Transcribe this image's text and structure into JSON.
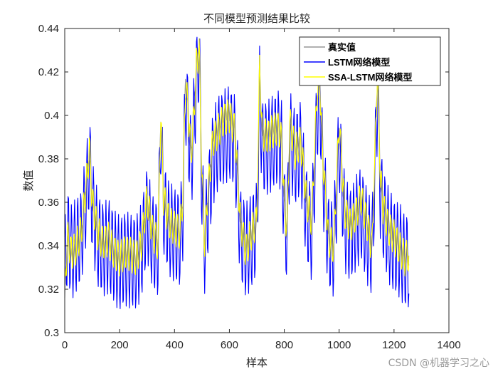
{
  "chart_data": {
    "type": "line",
    "title": "不同模型预测结果比较",
    "xlabel": "样本",
    "ylabel": "数值",
    "xlim": [
      0,
      1400
    ],
    "ylim": [
      0.3,
      0.44
    ],
    "xticks": [
      "0",
      "200",
      "400",
      "600",
      "800",
      "1000",
      "1200",
      "1400"
    ],
    "yticks": [
      "0.3",
      "0.32",
      "0.34",
      "0.36",
      "0.38",
      "0.4",
      "0.42",
      "0.44"
    ],
    "grid": false,
    "legend_position": "top-right",
    "series": [
      {
        "name": "真实值",
        "color": "#969696",
        "x": [
          0,
          10,
          25,
          40,
          60,
          80,
          90,
          100,
          120,
          140,
          160,
          180,
          200,
          220,
          240,
          260,
          280,
          300,
          320,
          340,
          350,
          360,
          380,
          400,
          420,
          430,
          440,
          450,
          460,
          470,
          480,
          490,
          500,
          510,
          520,
          540,
          560,
          580,
          600,
          610,
          620,
          640,
          660,
          680,
          700,
          710,
          720,
          740,
          760,
          780,
          790,
          800,
          810,
          820,
          840,
          860,
          880,
          900,
          920,
          930,
          940,
          960,
          980,
          1000,
          1020,
          1040,
          1060,
          1080,
          1100,
          1120,
          1140,
          1150,
          1160,
          1180,
          1200,
          1220,
          1240,
          1255
        ],
        "values": [
          0.316,
          0.343,
          0.335,
          0.338,
          0.345,
          0.372,
          0.382,
          0.36,
          0.345,
          0.34,
          0.342,
          0.336,
          0.333,
          0.336,
          0.335,
          0.333,
          0.34,
          0.36,
          0.345,
          0.34,
          0.4,
          0.36,
          0.35,
          0.347,
          0.345,
          0.36,
          0.417,
          0.4,
          0.38,
          0.4,
          0.425,
          0.433,
          0.37,
          0.34,
          0.36,
          0.39,
          0.395,
          0.4,
          0.402,
          0.398,
          0.395,
          0.35,
          0.34,
          0.345,
          0.35,
          0.42,
          0.39,
          0.392,
          0.395,
          0.395,
          0.39,
          0.36,
          0.345,
          0.395,
          0.385,
          0.39,
          0.36,
          0.35,
          0.41,
          0.415,
          0.38,
          0.345,
          0.34,
          0.395,
          0.355,
          0.35,
          0.355,
          0.36,
          0.35,
          0.34,
          0.42,
          0.37,
          0.36,
          0.35,
          0.345,
          0.34,
          0.335,
          0.335
        ]
      },
      {
        "name": "LSTM网络模型",
        "color": "#0000ff",
        "x": [
          0,
          10,
          25,
          40,
          60,
          80,
          90,
          100,
          120,
          140,
          160,
          180,
          200,
          220,
          240,
          260,
          280,
          300,
          320,
          340,
          350,
          360,
          380,
          400,
          420,
          430,
          440,
          450,
          460,
          470,
          480,
          490,
          500,
          510,
          520,
          540,
          560,
          580,
          600,
          610,
          620,
          640,
          660,
          680,
          700,
          710,
          720,
          740,
          760,
          780,
          790,
          800,
          810,
          820,
          840,
          860,
          880,
          900,
          920,
          930,
          940,
          960,
          980,
          1000,
          1020,
          1040,
          1060,
          1080,
          1100,
          1120,
          1140,
          1150,
          1160,
          1180,
          1200,
          1220,
          1240,
          1255
        ],
        "values": [
          0.33,
          0.345,
          0.337,
          0.34,
          0.344,
          0.365,
          0.38,
          0.358,
          0.343,
          0.338,
          0.34,
          0.335,
          0.332,
          0.334,
          0.333,
          0.332,
          0.338,
          0.355,
          0.342,
          0.338,
          0.395,
          0.358,
          0.348,
          0.345,
          0.343,
          0.355,
          0.41,
          0.395,
          0.375,
          0.395,
          0.418,
          0.428,
          0.365,
          0.34,
          0.355,
          0.38,
          0.388,
          0.39,
          0.392,
          0.39,
          0.388,
          0.345,
          0.338,
          0.342,
          0.348,
          0.41,
          0.385,
          0.385,
          0.388,
          0.39,
          0.385,
          0.355,
          0.343,
          0.39,
          0.38,
          0.385,
          0.355,
          0.345,
          0.4,
          0.41,
          0.375,
          0.342,
          0.338,
          0.388,
          0.35,
          0.345,
          0.35,
          0.355,
          0.345,
          0.338,
          0.41,
          0.365,
          0.355,
          0.345,
          0.34,
          0.338,
          0.333,
          0.333
        ]
      },
      {
        "name": "SSA-LSTM网络模型",
        "color": "#ffff00",
        "x": [
          0,
          10,
          25,
          40,
          60,
          80,
          90,
          100,
          120,
          140,
          160,
          180,
          200,
          220,
          240,
          260,
          280,
          300,
          320,
          340,
          350,
          360,
          380,
          400,
          420,
          430,
          440,
          450,
          460,
          470,
          480,
          490,
          500,
          510,
          520,
          540,
          560,
          580,
          600,
          610,
          620,
          640,
          660,
          680,
          700,
          710,
          720,
          740,
          760,
          780,
          790,
          800,
          810,
          820,
          840,
          860,
          880,
          900,
          920,
          930,
          940,
          960,
          980,
          1000,
          1020,
          1040,
          1060,
          1080,
          1100,
          1120,
          1140,
          1150,
          1160,
          1180,
          1200,
          1220,
          1240,
          1255
        ],
        "values": [
          0.32,
          0.344,
          0.336,
          0.339,
          0.346,
          0.37,
          0.385,
          0.361,
          0.346,
          0.341,
          0.343,
          0.337,
          0.334,
          0.337,
          0.336,
          0.334,
          0.341,
          0.362,
          0.346,
          0.341,
          0.403,
          0.362,
          0.351,
          0.348,
          0.346,
          0.362,
          0.415,
          0.402,
          0.382,
          0.398,
          0.423,
          0.43,
          0.372,
          0.341,
          0.362,
          0.388,
          0.393,
          0.398,
          0.4,
          0.396,
          0.393,
          0.352,
          0.337,
          0.346,
          0.351,
          0.422,
          0.392,
          0.39,
          0.393,
          0.394,
          0.388,
          0.362,
          0.346,
          0.397,
          0.383,
          0.388,
          0.362,
          0.351,
          0.412,
          0.414,
          0.382,
          0.344,
          0.339,
          0.397,
          0.356,
          0.349,
          0.354,
          0.362,
          0.351,
          0.339,
          0.423,
          0.372,
          0.358,
          0.348,
          0.344,
          0.339,
          0.334,
          0.336
        ]
      }
    ]
  },
  "watermark": "CSDN @机器学习之心"
}
